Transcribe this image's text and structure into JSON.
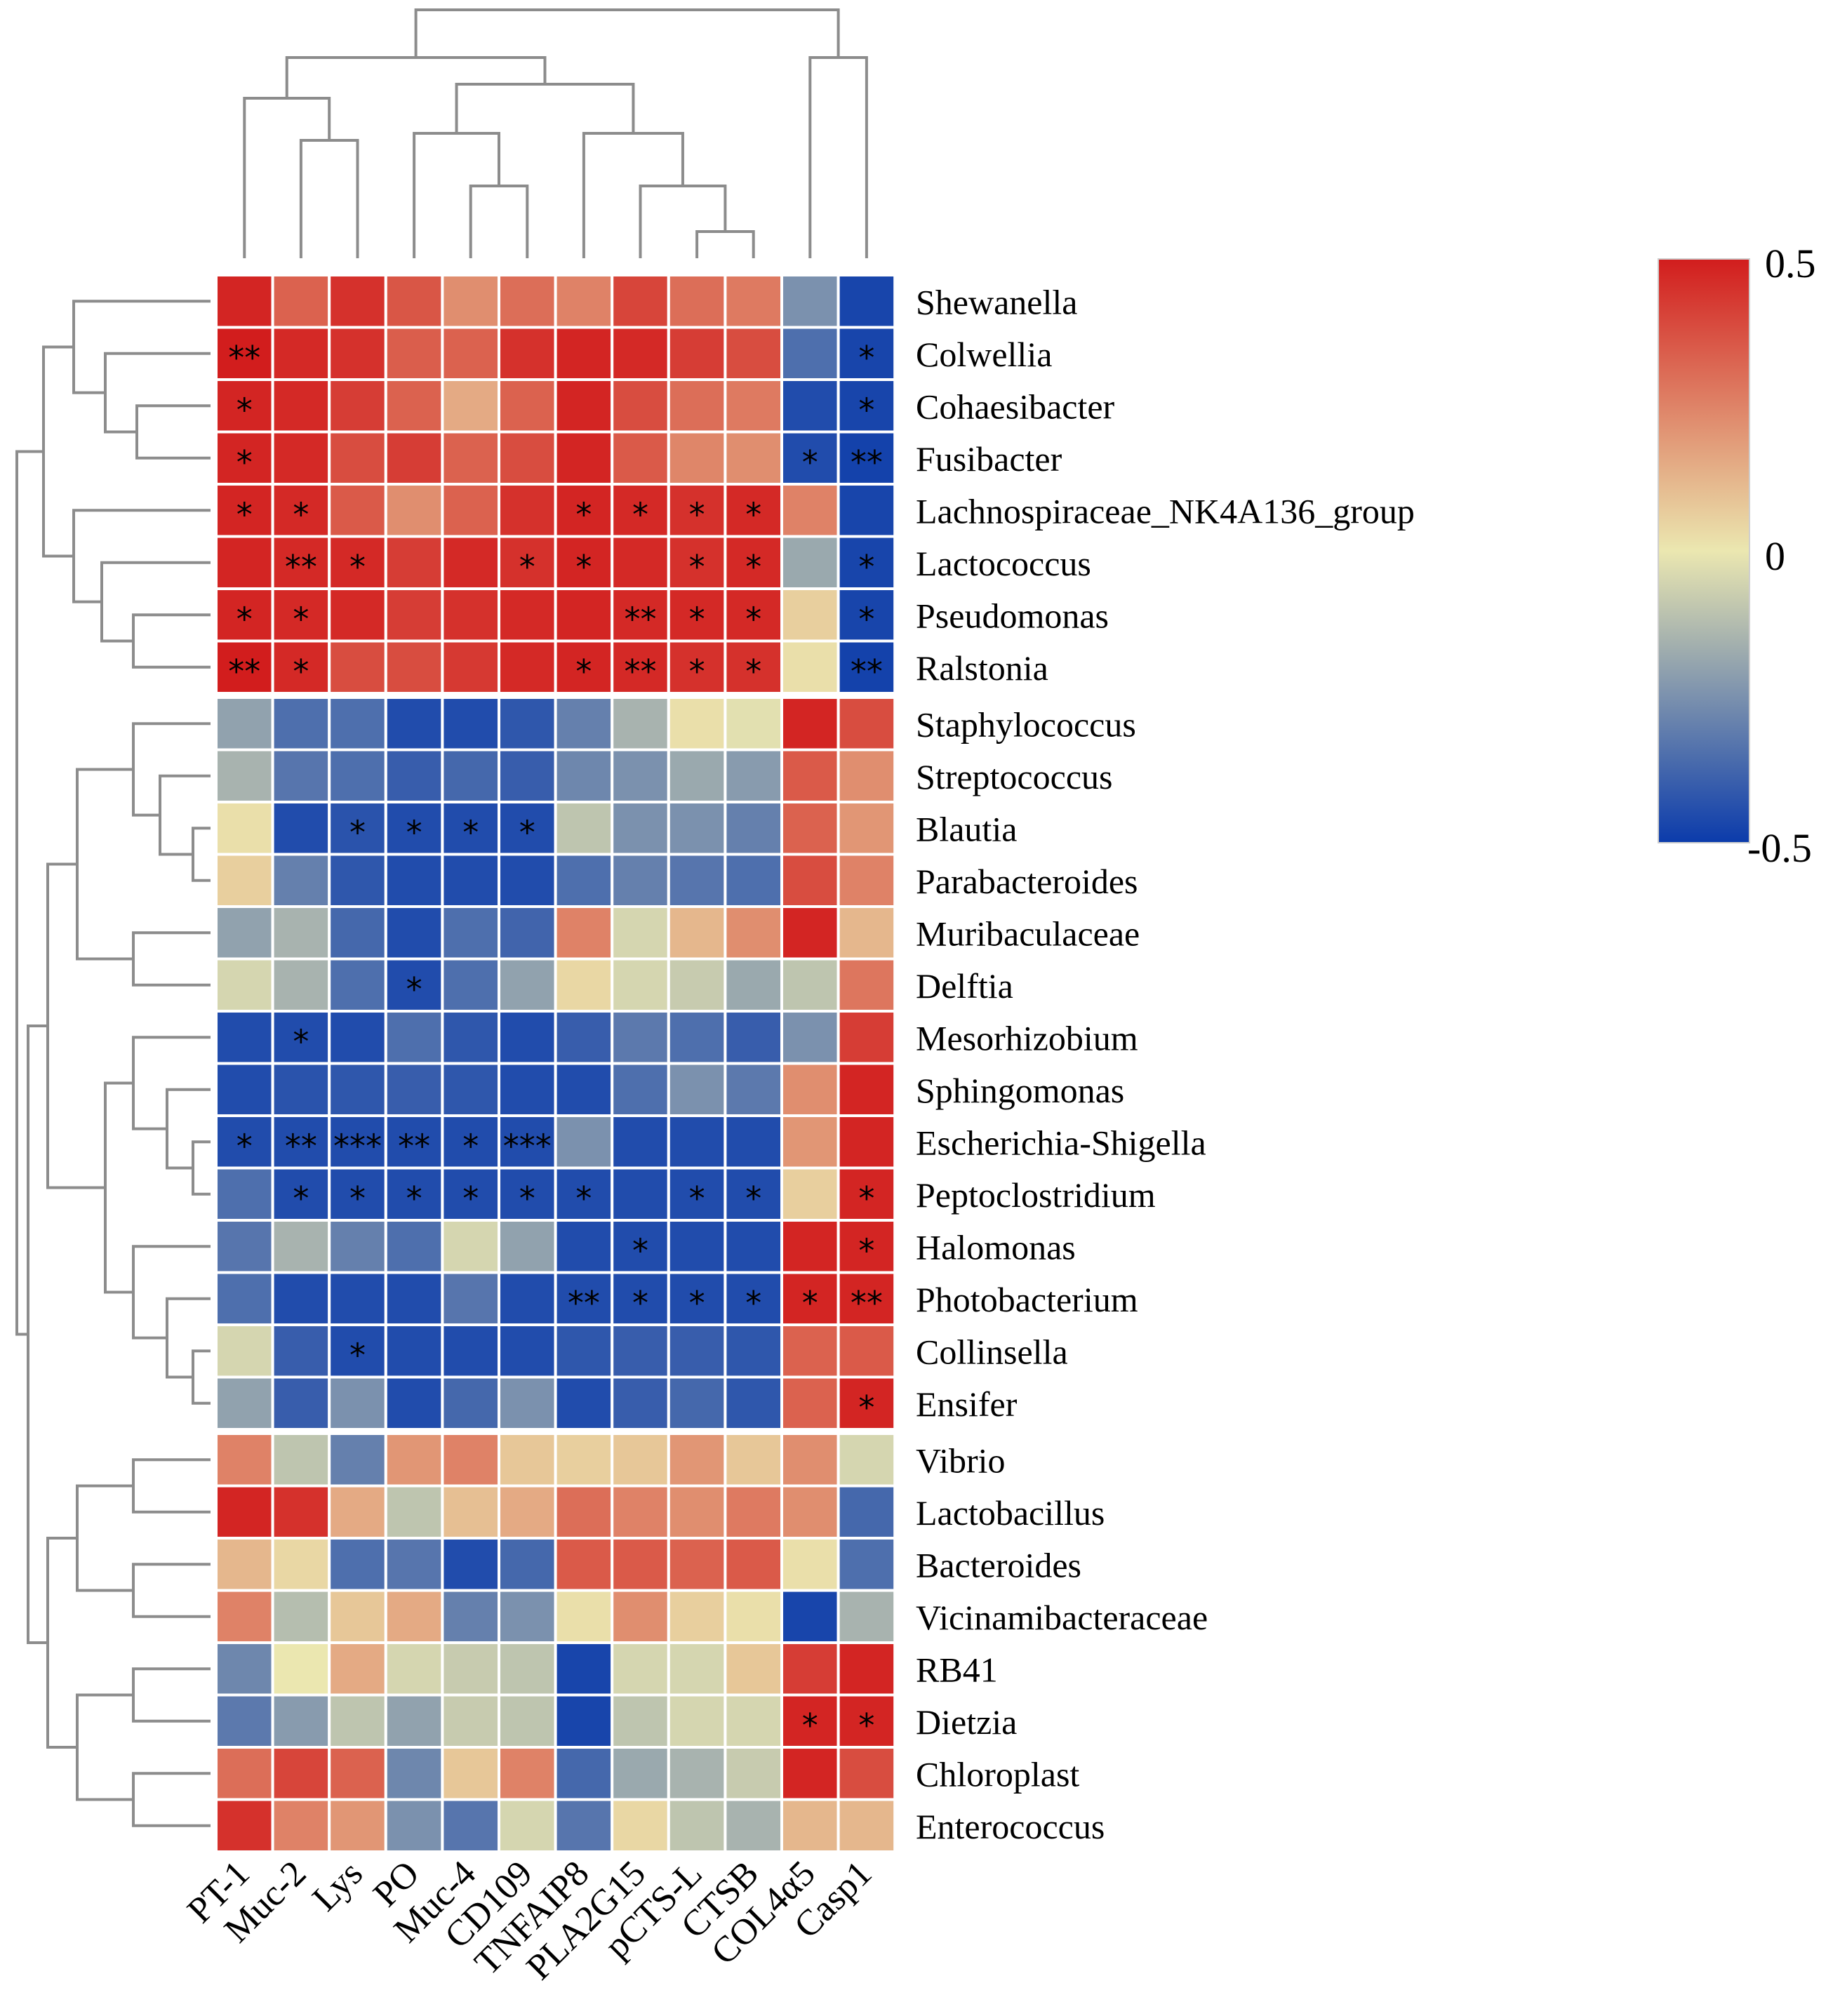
{
  "chart_data": {
    "type": "heatmap",
    "title": "",
    "columns": [
      "PT-1",
      "Muc-2",
      "Lys",
      "PO",
      "Muc-4",
      "CD109",
      "TNFAIP8",
      "PLA2G15",
      "pCTS-L",
      "CTSB",
      "COL4α5",
      "Casp1"
    ],
    "rows": [
      "Shewanella",
      "Colwellia",
      "Cohaesibacter",
      "Fusibacter",
      "Lachnospiraceae_NK4A136_group",
      "Lactococcus",
      "Pseudomonas",
      "Ralstonia",
      "Staphylococcus",
      "Streptococcus",
      "Blautia",
      "Parabacteroides",
      "Muribaculaceae",
      "Delftia",
      "Mesorhizobium",
      "Sphingomonas",
      "Escherichia-Shigella",
      "Peptoclostridium",
      "Halomonas",
      "Photobacterium",
      "Collinsella",
      "Ensifer",
      "Vibrio",
      "Lactobacillus",
      "Bacteroides",
      "Vicinamibacteraceae",
      "RB41",
      "Dietzia",
      "Chloroplast",
      "Enterococcus"
    ],
    "values": [
      [
        0.48,
        0.33,
        0.45,
        0.36,
        0.22,
        0.3,
        0.25,
        0.4,
        0.3,
        0.27,
        -0.25,
        -0.47
      ],
      [
        0.5,
        0.47,
        0.45,
        0.34,
        0.33,
        0.45,
        0.48,
        0.47,
        0.42,
        0.38,
        -0.35,
        -0.47
      ],
      [
        0.48,
        0.47,
        0.42,
        0.33,
        0.15,
        0.33,
        0.48,
        0.38,
        0.3,
        0.27,
        -0.45,
        -0.47
      ],
      [
        0.48,
        0.47,
        0.38,
        0.42,
        0.33,
        0.38,
        0.48,
        0.35,
        0.24,
        0.22,
        -0.45,
        -0.48
      ],
      [
        0.48,
        0.47,
        0.35,
        0.22,
        0.33,
        0.45,
        0.48,
        0.47,
        0.45,
        0.47,
        0.25,
        -0.47
      ],
      [
        0.48,
        0.47,
        0.47,
        0.42,
        0.47,
        0.45,
        0.48,
        0.47,
        0.45,
        0.47,
        -0.18,
        -0.47
      ],
      [
        0.48,
        0.47,
        0.47,
        0.42,
        0.45,
        0.47,
        0.48,
        0.47,
        0.47,
        0.47,
        0.06,
        -0.47
      ],
      [
        0.5,
        0.47,
        0.38,
        0.38,
        0.43,
        0.47,
        0.48,
        0.47,
        0.45,
        0.45,
        0.02,
        -0.48
      ],
      [
        -0.2,
        -0.35,
        -0.35,
        -0.45,
        -0.45,
        -0.42,
        -0.3,
        -0.15,
        0.02,
        -0.02,
        0.48,
        0.38
      ],
      [
        -0.15,
        -0.33,
        -0.35,
        -0.4,
        -0.37,
        -0.4,
        -0.28,
        -0.25,
        -0.18,
        -0.22,
        0.35,
        0.22
      ],
      [
        0.02,
        -0.45,
        -0.43,
        -0.45,
        -0.45,
        -0.45,
        -0.1,
        -0.25,
        -0.25,
        -0.3,
        0.33,
        0.2
      ],
      [
        0.06,
        -0.3,
        -0.42,
        -0.45,
        -0.45,
        -0.45,
        -0.35,
        -0.3,
        -0.33,
        -0.35,
        0.38,
        0.25
      ],
      [
        -0.2,
        -0.15,
        -0.37,
        -0.45,
        -0.35,
        -0.38,
        0.25,
        -0.05,
        0.12,
        0.22,
        0.48,
        0.12
      ],
      [
        -0.05,
        -0.15,
        -0.35,
        -0.45,
        -0.35,
        -0.2,
        0.04,
        -0.05,
        -0.08,
        -0.18,
        -0.1,
        0.28
      ],
      [
        -0.45,
        -0.45,
        -0.45,
        -0.35,
        -0.42,
        -0.45,
        -0.4,
        -0.32,
        -0.35,
        -0.4,
        -0.25,
        0.42
      ],
      [
        -0.45,
        -0.43,
        -0.42,
        -0.4,
        -0.42,
        -0.45,
        -0.45,
        -0.35,
        -0.25,
        -0.32,
        0.22,
        0.48
      ],
      [
        -0.45,
        -0.45,
        -0.45,
        -0.45,
        -0.45,
        -0.45,
        -0.25,
        -0.45,
        -0.45,
        -0.45,
        0.2,
        0.48
      ],
      [
        -0.35,
        -0.45,
        -0.45,
        -0.45,
        -0.45,
        -0.45,
        -0.45,
        -0.45,
        -0.45,
        -0.45,
        0.06,
        0.48
      ],
      [
        -0.33,
        -0.15,
        -0.3,
        -0.35,
        -0.05,
        -0.2,
        -0.45,
        -0.45,
        -0.45,
        -0.45,
        0.48,
        0.48
      ],
      [
        -0.35,
        -0.45,
        -0.45,
        -0.45,
        -0.33,
        -0.45,
        -0.45,
        -0.45,
        -0.45,
        -0.45,
        0.48,
        0.48
      ],
      [
        -0.05,
        -0.4,
        -0.45,
        -0.45,
        -0.45,
        -0.45,
        -0.42,
        -0.4,
        -0.4,
        -0.42,
        0.33,
        0.35
      ],
      [
        -0.2,
        -0.4,
        -0.25,
        -0.45,
        -0.37,
        -0.25,
        -0.45,
        -0.4,
        -0.37,
        -0.42,
        0.33,
        0.48
      ],
      [
        0.25,
        -0.1,
        -0.3,
        0.2,
        0.25,
        0.08,
        0.06,
        0.08,
        0.2,
        0.08,
        0.22,
        -0.05
      ],
      [
        0.48,
        0.45,
        0.15,
        -0.1,
        0.1,
        0.15,
        0.3,
        0.25,
        0.22,
        0.27,
        0.22,
        -0.37
      ],
      [
        0.12,
        0.04,
        -0.35,
        -0.33,
        -0.45,
        -0.37,
        0.35,
        0.35,
        0.33,
        0.35,
        0.02,
        -0.35
      ],
      [
        0.25,
        -0.12,
        0.08,
        0.15,
        -0.3,
        -0.25,
        0.02,
        0.22,
        0.06,
        0.02,
        -0.47,
        -0.15
      ],
      [
        -0.28,
        0.0,
        0.15,
        -0.05,
        -0.08,
        -0.1,
        -0.47,
        -0.05,
        -0.05,
        0.08,
        0.42,
        0.48
      ],
      [
        -0.32,
        -0.22,
        -0.1,
        -0.2,
        -0.08,
        -0.1,
        -0.47,
        -0.1,
        -0.05,
        -0.05,
        0.48,
        0.48
      ],
      [
        0.3,
        0.4,
        0.33,
        -0.28,
        0.08,
        0.25,
        -0.37,
        -0.18,
        -0.15,
        -0.08,
        0.48,
        0.38
      ],
      [
        0.45,
        0.25,
        0.2,
        -0.25,
        -0.33,
        -0.05,
        -0.33,
        0.04,
        -0.1,
        -0.15,
        0.12,
        0.12
      ]
    ],
    "significance": [
      [
        "",
        "",
        "",
        "",
        "",
        "",
        "",
        "",
        "",
        "",
        "",
        ""
      ],
      [
        "**",
        "",
        "",
        "",
        "",
        "",
        "",
        "",
        "",
        "",
        "",
        "*"
      ],
      [
        "*",
        "",
        "",
        "",
        "",
        "",
        "",
        "",
        "",
        "",
        "",
        "*"
      ],
      [
        "*",
        "",
        "",
        "",
        "",
        "",
        "",
        "",
        "",
        "",
        "*",
        "**"
      ],
      [
        "*",
        "*",
        "",
        "",
        "",
        "",
        "*",
        "*",
        "*",
        "*",
        "",
        ""
      ],
      [
        "",
        "**",
        "*",
        "",
        "",
        "*",
        "*",
        "",
        "*",
        "*",
        "",
        "*"
      ],
      [
        "*",
        "*",
        "",
        "",
        "",
        "",
        "",
        "**",
        "*",
        "*",
        "",
        "*"
      ],
      [
        "**",
        "*",
        "",
        "",
        "",
        "",
        "*",
        "**",
        "*",
        "*",
        "",
        "**"
      ],
      [
        "",
        "",
        "",
        "",
        "",
        "",
        "",
        "",
        "",
        "",
        "",
        ""
      ],
      [
        "",
        "",
        "",
        "",
        "",
        "",
        "",
        "",
        "",
        "",
        "",
        ""
      ],
      [
        "",
        "",
        "*",
        "*",
        "*",
        "*",
        "",
        "",
        "",
        "",
        "",
        ""
      ],
      [
        "",
        "",
        "",
        "",
        "",
        "",
        "",
        "",
        "",
        "",
        "",
        ""
      ],
      [
        "",
        "",
        "",
        "",
        "",
        "",
        "",
        "",
        "",
        "",
        "",
        ""
      ],
      [
        "",
        "",
        "",
        "*",
        "",
        "",
        "",
        "",
        "",
        "",
        "",
        ""
      ],
      [
        "",
        "*",
        "",
        "",
        "",
        "",
        "",
        "",
        "",
        "",
        "",
        ""
      ],
      [
        "",
        "",
        "",
        "",
        "",
        "",
        "",
        "",
        "",
        "",
        "",
        ""
      ],
      [
        "*",
        "**",
        "***",
        "**",
        "*",
        "***",
        "",
        "",
        "",
        "",
        "",
        ""
      ],
      [
        "",
        "*",
        "*",
        "*",
        "*",
        "*",
        "*",
        "",
        "*",
        "*",
        "",
        "*"
      ],
      [
        "",
        "",
        "",
        "",
        "",
        "",
        "",
        "*",
        "",
        "",
        "",
        "*"
      ],
      [
        "",
        "",
        "",
        "",
        "",
        "",
        "**",
        "*",
        "*",
        "*",
        "*",
        "**"
      ],
      [
        "",
        "",
        "*",
        "",
        "",
        "",
        "",
        "",
        "",
        "",
        "",
        ""
      ],
      [
        "",
        "",
        "",
        "",
        "",
        "",
        "",
        "",
        "",
        "",
        "",
        "*"
      ],
      [
        "",
        "",
        "",
        "",
        "",
        "",
        "",
        "",
        "",
        "",
        "",
        ""
      ],
      [
        "",
        "",
        "",
        "",
        "",
        "",
        "",
        "",
        "",
        "",
        "",
        ""
      ],
      [
        "",
        "",
        "",
        "",
        "",
        "",
        "",
        "",
        "",
        "",
        "",
        ""
      ],
      [
        "",
        "",
        "",
        "",
        "",
        "",
        "",
        "",
        "",
        "",
        "",
        ""
      ],
      [
        "",
        "",
        "",
        "",
        "",
        "",
        "",
        "",
        "",
        "",
        "",
        ""
      ],
      [
        "",
        "",
        "",
        "",
        "",
        "",
        "",
        "",
        "",
        "",
        "*",
        "*"
      ],
      [
        "",
        "",
        "",
        "",
        "",
        "",
        "",
        "",
        "",
        "",
        "",
        ""
      ],
      [
        "",
        "",
        "",
        "",
        "",
        "",
        "",
        "",
        "",
        "",
        "",
        ""
      ]
    ],
    "color_scale": {
      "min": -0.5,
      "max": 0.5,
      "colors": [
        "#0b3bab",
        "#ebe7b0",
        "#d21d1d"
      ],
      "tick_labels": [
        "0.5",
        "0",
        "-0.5"
      ]
    },
    "column_order_note": "columns clustered by dendrogram on top",
    "row_order_note": "rows clustered by dendrogram on left",
    "legend_position": "right"
  }
}
